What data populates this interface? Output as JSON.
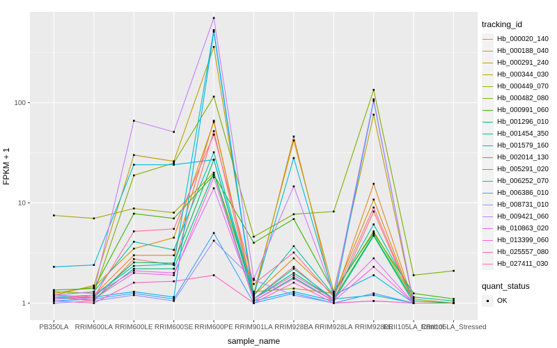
{
  "figure": {
    "panel_bg": "#EBEBEB",
    "grid_color": "#FFFFFF",
    "axis_text_color": "#4D4D4D",
    "tick_color": "#333333"
  },
  "chart_data": {
    "type": "line",
    "title": "",
    "xlabel": "sample_name",
    "ylabel": "FPKM + 1",
    "y_scale": "log10",
    "y_ticks": [
      1,
      10,
      100
    ],
    "y_minor_ticks": [
      3.162,
      31.62,
      316.2
    ],
    "ylim": [
      0.68,
      800
    ],
    "grid": "on",
    "legend_position": "right",
    "legend_title": "tracking_id",
    "marker": "black-square",
    "categories": [
      "PB350LA",
      "RRIM600LA",
      "RRIM600LE",
      "RRIM600SE",
      "RRIM600PE",
      "RRIM901LA",
      "RRIM928BA",
      "RRIM928LA",
      "RRIM928LE",
      "RRII105LA_Control",
      "RRII105LA_Stressed"
    ],
    "series": [
      {
        "name": "Hb_000020_140",
        "color": "#F8766D",
        "values": [
          1.15,
          1.05,
          2.75,
          2.4,
          52,
          1.1,
          2.3,
          1.05,
          8.2,
          1.0,
          1.0
        ]
      },
      {
        "name": "Hb_000188_040",
        "color": "#E88526",
        "values": [
          1.1,
          1.2,
          3.0,
          3.0,
          66,
          1.15,
          46,
          1.1,
          15.5,
          1.0,
          1.0
        ]
      },
      {
        "name": "Hb_000291_240",
        "color": "#D89000",
        "values": [
          1.25,
          1.45,
          3.5,
          4.5,
          64,
          1.2,
          2.8,
          1.2,
          10.8,
          1.0,
          1.0
        ]
      },
      {
        "name": "Hb_000344_030",
        "color": "#C09B00",
        "values": [
          1.2,
          1.5,
          30,
          26,
          360,
          1.25,
          42,
          1.3,
          76,
          1.0,
          1.0
        ]
      },
      {
        "name": "Hb_000449_070",
        "color": "#A3A500",
        "values": [
          7.5,
          7.0,
          8.8,
          8.0,
          20,
          1.3,
          1.4,
          1.25,
          5.2,
          1.1,
          1.0
        ]
      },
      {
        "name": "Hb_000482_080",
        "color": "#7CAE00",
        "values": [
          1.3,
          1.25,
          18.8,
          25,
          115,
          4.6,
          7.7,
          8.2,
          134,
          1.9,
          2.1
        ]
      },
      {
        "name": "Hb_000991_060",
        "color": "#39B600",
        "values": [
          1.35,
          1.4,
          7.8,
          7.0,
          19,
          4.0,
          6.9,
          1.3,
          5.0,
          1.25,
          1.1
        ]
      },
      {
        "name": "Hb_001296_010",
        "color": "#00BB4E",
        "values": [
          1.1,
          1.15,
          2.55,
          2.5,
          27,
          1.1,
          2.0,
          1.1,
          4.8,
          1.05,
          1.0
        ]
      },
      {
        "name": "Hb_001454_350",
        "color": "#00BF7D",
        "values": [
          1.05,
          1.1,
          2.2,
          2.2,
          20,
          1.05,
          1.8,
          1.05,
          4.7,
          1.0,
          1.0
        ]
      },
      {
        "name": "Hb_001579_160",
        "color": "#00C1A3",
        "values": [
          1.2,
          1.3,
          4.1,
          3.4,
          32,
          1.2,
          3.7,
          1.2,
          6.1,
          1.15,
          1.05
        ]
      },
      {
        "name": "Hb_002014_130",
        "color": "#00BFC4",
        "values": [
          1.15,
          1.2,
          2.35,
          2.45,
          530,
          1.1,
          2.2,
          1.1,
          1.2,
          1.0,
          1.0
        ]
      },
      {
        "name": "Hb_005291_020",
        "color": "#00BAE0",
        "values": [
          2.3,
          2.4,
          24,
          24,
          27,
          1.2,
          28,
          1.2,
          1.9,
          1.0,
          1.0
        ]
      },
      {
        "name": "Hb_006252_070",
        "color": "#00B0F6",
        "values": [
          1.1,
          1.15,
          1.3,
          1.15,
          510,
          1.05,
          1.3,
          1.05,
          104,
          1.0,
          1.0
        ]
      },
      {
        "name": "Hb_006386_010",
        "color": "#35A2FF",
        "values": [
          1.05,
          1.1,
          1.25,
          1.1,
          5.0,
          1.0,
          1.25,
          1.0,
          1.25,
          1.0,
          1.0
        ]
      },
      {
        "name": "Hb_008731_010",
        "color": "#9590FF",
        "values": [
          1.0,
          1.05,
          1.2,
          1.05,
          4.2,
          1.7,
          1.2,
          1.0,
          1.05,
          1.0,
          1.0
        ]
      },
      {
        "name": "Hb_009421_060",
        "color": "#C77CFF",
        "values": [
          1.2,
          1.3,
          66,
          51,
          700,
          1.75,
          14.6,
          1.2,
          108,
          1.0,
          1.0
        ]
      },
      {
        "name": "Hb_010863_020",
        "color": "#E76BF3",
        "values": [
          1.1,
          1.2,
          2.1,
          2.0,
          14,
          1.1,
          1.9,
          1.1,
          2.8,
          1.0,
          1.0
        ]
      },
      {
        "name": "Hb_013399_060",
        "color": "#FA62DB",
        "values": [
          1.15,
          1.1,
          2.0,
          1.9,
          18,
          1.05,
          1.75,
          1.05,
          2.3,
          1.0,
          1.0
        ]
      },
      {
        "name": "Hb_025557_080",
        "color": "#FF62BC",
        "values": [
          1.05,
          1.0,
          1.6,
          1.65,
          1.9,
          1.0,
          1.6,
          1.0,
          1.05,
          1.0,
          1.0
        ]
      },
      {
        "name": "Hb_027411_030",
        "color": "#FF6A98",
        "values": [
          1.2,
          1.15,
          5.2,
          5.5,
          48,
          1.55,
          3.2,
          1.15,
          9.0,
          1.0,
          1.0
        ]
      }
    ],
    "legend2": {
      "title": "quant_status",
      "items": [
        {
          "label": "OK",
          "marker": "black-square"
        }
      ]
    }
  }
}
